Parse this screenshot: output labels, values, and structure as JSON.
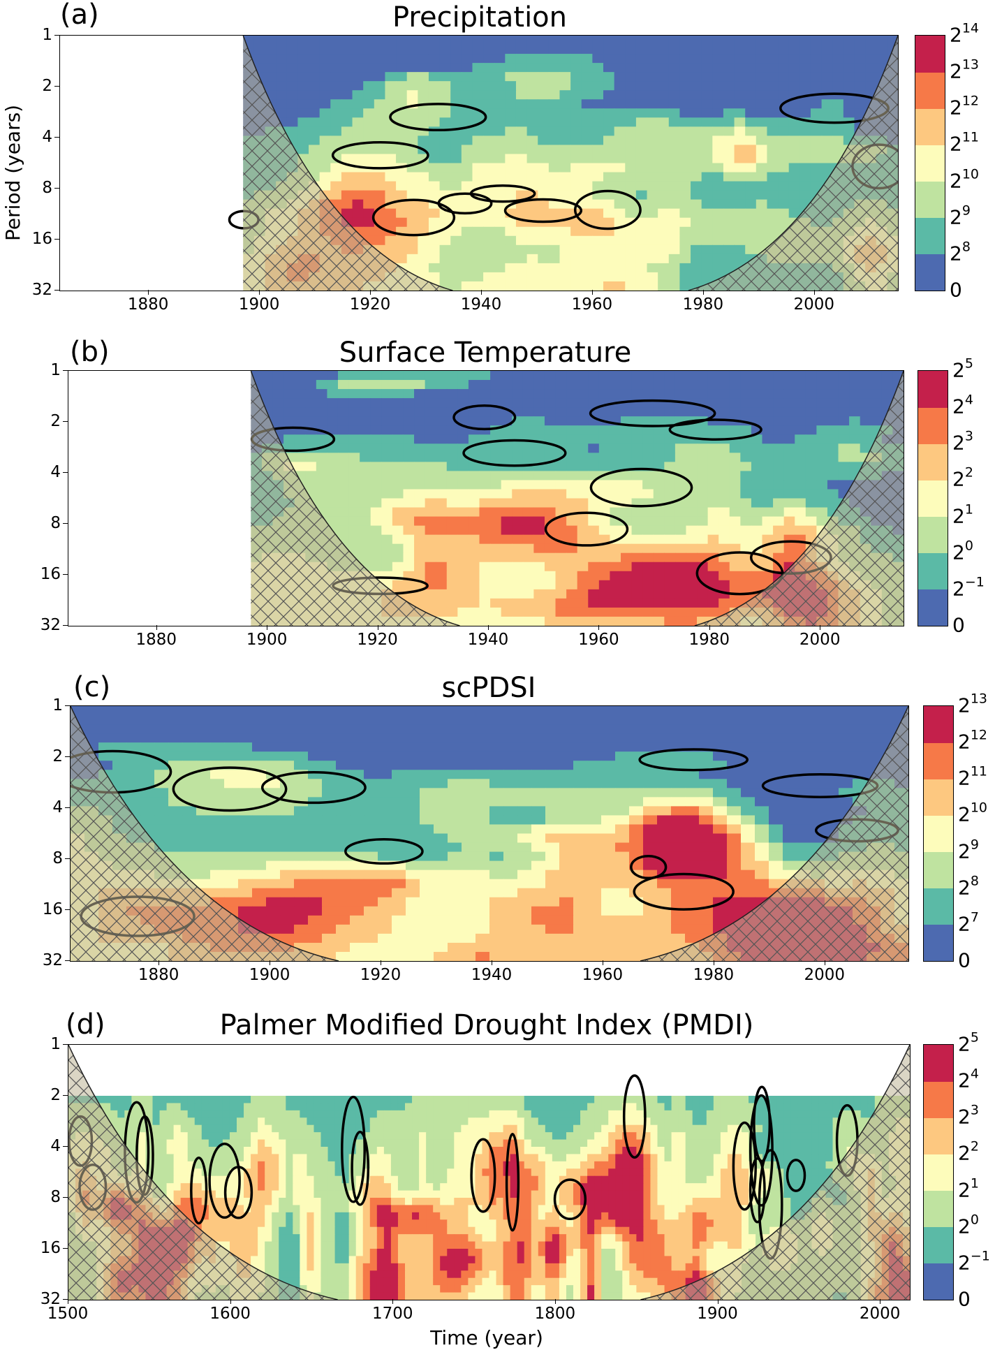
{
  "palette": [
    "#4d6ab0",
    "#5bbaa6",
    "#bfe3a0",
    "#fdfcbb",
    "#fdc880",
    "#f67948",
    "#c4204b"
  ],
  "hatch_color": "#555555",
  "contour_color": "#000000",
  "chart_data": [
    {
      "type": "heatmap",
      "panel_label": "(a)",
      "title": "Precipitation",
      "ylabel": "Period (years)",
      "xlabel": "",
      "xlim": [
        1864,
        2015
      ],
      "data_start": 1897,
      "xticks": [
        "1880",
        "1900",
        "1920",
        "1940",
        "1960",
        "1980",
        "2000"
      ],
      "yticks": [
        "1",
        "2",
        "4",
        "8",
        "16",
        "32"
      ],
      "colorbar": [
        {
          "base": "0",
          "exp": ""
        },
        {
          "base": "2",
          "exp": "8"
        },
        {
          "base": "2",
          "exp": "9"
        },
        {
          "base": "2",
          "exp": "10"
        },
        {
          "base": "2",
          "exp": "11"
        },
        {
          "base": "2",
          "exp": "12"
        },
        {
          "base": "2",
          "exp": "13"
        },
        {
          "base": "2",
          "exp": "14"
        }
      ]
    },
    {
      "type": "heatmap",
      "panel_label": "(b)",
      "title": "Surface Temperature",
      "ylabel": "",
      "xlabel": "",
      "xlim": [
        1864,
        2015
      ],
      "data_start": 1897,
      "xticks": [
        "1880",
        "1900",
        "1920",
        "1940",
        "1960",
        "1980",
        "2000"
      ],
      "yticks": [
        "1",
        "2",
        "4",
        "8",
        "16",
        "32"
      ],
      "colorbar": [
        {
          "base": "0",
          "exp": ""
        },
        {
          "base": "2",
          "exp": "−1"
        },
        {
          "base": "2",
          "exp": "0"
        },
        {
          "base": "2",
          "exp": "1"
        },
        {
          "base": "2",
          "exp": "2"
        },
        {
          "base": "2",
          "exp": "3"
        },
        {
          "base": "2",
          "exp": "4"
        },
        {
          "base": "2",
          "exp": "5"
        }
      ]
    },
    {
      "type": "heatmap",
      "panel_label": "(c)",
      "title": "scPDSI",
      "ylabel": "",
      "xlabel": "",
      "xlim": [
        1864,
        2015
      ],
      "data_start": 1864,
      "xticks": [
        "1880",
        "1900",
        "1920",
        "1940",
        "1960",
        "1980",
        "2000"
      ],
      "yticks": [
        "1",
        "2",
        "4",
        "8",
        "16",
        "32"
      ],
      "colorbar": [
        {
          "base": "0",
          "exp": ""
        },
        {
          "base": "2",
          "exp": "7"
        },
        {
          "base": "2",
          "exp": "8"
        },
        {
          "base": "2",
          "exp": "9"
        },
        {
          "base": "2",
          "exp": "10"
        },
        {
          "base": "2",
          "exp": "11"
        },
        {
          "base": "2",
          "exp": "12"
        },
        {
          "base": "2",
          "exp": "13"
        }
      ]
    },
    {
      "type": "heatmap",
      "panel_label": "(d)",
      "title": "Palmer Modified Drought Index (PMDI)",
      "ylabel": "",
      "xlabel": "Time (year)",
      "xlim": [
        1500,
        2018
      ],
      "data_start": 1500,
      "xticks": [
        "1500",
        "1600",
        "1700",
        "1800",
        "1900",
        "2000"
      ],
      "yticks": [
        "1",
        "2",
        "4",
        "8",
        "16",
        "32"
      ],
      "colorbar": [
        {
          "base": "0",
          "exp": ""
        },
        {
          "base": "2",
          "exp": "−1"
        },
        {
          "base": "2",
          "exp": "0"
        },
        {
          "base": "2",
          "exp": "1"
        },
        {
          "base": "2",
          "exp": "2"
        },
        {
          "base": "2",
          "exp": "3"
        },
        {
          "base": "2",
          "exp": "4"
        },
        {
          "base": "2",
          "exp": "5"
        }
      ]
    }
  ]
}
